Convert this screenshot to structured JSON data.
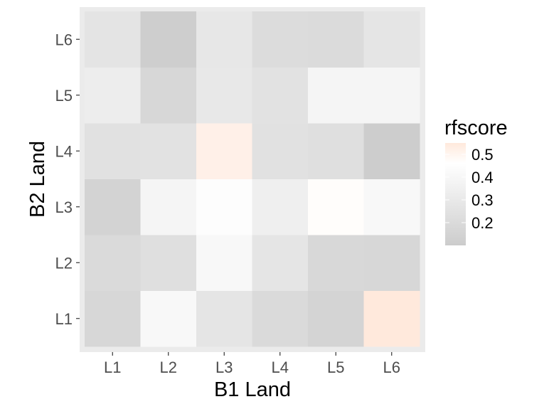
{
  "chart_data": {
    "type": "heatmap",
    "x_categories": [
      "L1",
      "L2",
      "L3",
      "L4",
      "L5",
      "L6"
    ],
    "y_categories": [
      "L1",
      "L2",
      "L3",
      "L4",
      "L5",
      "L6"
    ],
    "xlabel": "B1 Land",
    "ylabel": "B2 Land",
    "values": [
      [
        0.2,
        0.42,
        0.3,
        0.22,
        0.18,
        0.55
      ],
      [
        0.22,
        0.26,
        0.42,
        0.3,
        0.21,
        0.2
      ],
      [
        0.17,
        0.4,
        0.45,
        0.36,
        0.47,
        0.42
      ],
      [
        0.27,
        0.28,
        0.52,
        0.27,
        0.26,
        0.11
      ],
      [
        0.35,
        0.2,
        0.32,
        0.28,
        0.4,
        0.4
      ],
      [
        0.29,
        0.12,
        0.31,
        0.24,
        0.23,
        0.3
      ]
    ],
    "legend": {
      "title": "rfscore",
      "ticks": [
        "0.5",
        "0.4",
        "0.3",
        "0.2"
      ],
      "tick_values": [
        0.5,
        0.4,
        0.3,
        0.2
      ],
      "range": [
        0.1,
        0.55
      ],
      "position": "right",
      "colors": {
        "low": "#cccccc",
        "mid": "#ffffff",
        "high": "#ffe9dc"
      }
    },
    "panel_background": "#ebebeb"
  }
}
